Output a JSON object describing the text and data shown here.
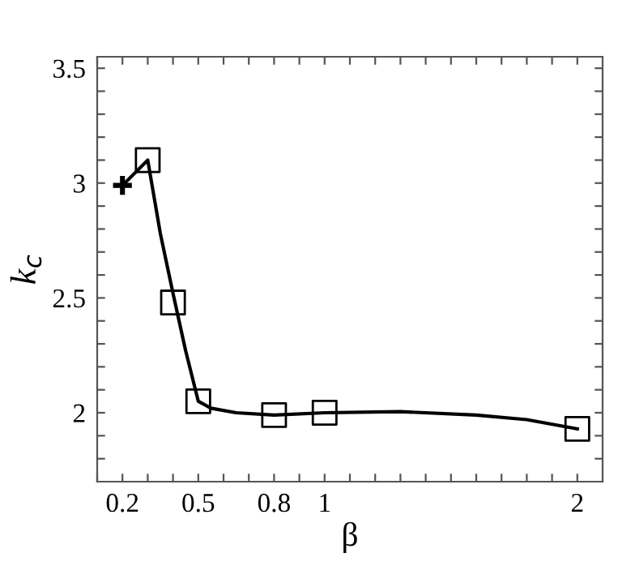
{
  "chart_data": {
    "type": "line",
    "xlabel": "β",
    "ylabel": "k$_{c}$",
    "xlim": [
      0.1,
      2.1
    ],
    "ylim": [
      1.7,
      3.55
    ],
    "xticks": [
      {
        "value": 0.1,
        "label": null
      },
      0.2,
      {
        "value": 0.3,
        "label": null
      },
      {
        "value": 0.4,
        "label": null
      },
      0.5,
      {
        "value": 0.6,
        "label": null
      },
      {
        "value": 0.7,
        "label": null
      },
      0.8,
      {
        "value": 0.9,
        "label": null
      },
      1,
      {
        "value": 1.1,
        "label": null
      },
      {
        "value": 1.2,
        "label": null
      },
      {
        "value": 1.3,
        "label": null
      },
      {
        "value": 1.4,
        "label": null
      },
      {
        "value": 1.5,
        "label": null
      },
      {
        "value": 1.6,
        "label": null
      },
      {
        "value": 1.7,
        "label": null
      },
      {
        "value": 1.8,
        "label": null
      },
      {
        "value": 1.9,
        "label": null
      },
      2
    ],
    "yticks": [
      {
        "value": 1.8,
        "label": null
      },
      {
        "value": 1.9,
        "label": null
      },
      2,
      {
        "value": 2.1,
        "label": null
      },
      {
        "value": 2.2,
        "label": null
      },
      {
        "value": 2.3,
        "label": null
      },
      {
        "value": 2.4,
        "label": null
      },
      2.5,
      {
        "value": 2.6,
        "label": null
      },
      {
        "value": 2.7,
        "label": null
      },
      {
        "value": 2.8,
        "label": null
      },
      {
        "value": 2.9,
        "label": null
      },
      3,
      {
        "value": 3.1,
        "label": null
      },
      {
        "value": 3.2,
        "label": null
      },
      {
        "value": 3.3,
        "label": null
      },
      {
        "value": 3.4,
        "label": null
      },
      3.5
    ],
    "grid": false,
    "legend": false,
    "series": [
      {
        "color": "#000000",
        "marker": "none",
        "line_style": "solid",
        "x": [
          0.2,
          0.3,
          0.35,
          0.4,
          0.45,
          0.5,
          0.55,
          0.65,
          0.8,
          1.0,
          1.3,
          1.6,
          1.8,
          2.0
        ],
        "values": [
          2.99,
          3.1,
          2.78,
          2.52,
          2.27,
          2.05,
          2.02,
          2.0,
          1.99,
          2.0,
          2.005,
          1.99,
          1.97,
          1.93
        ]
      },
      {
        "type": "scatter",
        "color": "#000000",
        "marker": "square",
        "x": [
          0.3,
          0.4,
          0.5,
          0.8,
          1.0,
          2.0
        ],
        "values": [
          3.1,
          2.48,
          2.05,
          1.99,
          2.0,
          1.93
        ]
      },
      {
        "type": "scatter",
        "color": "#000000",
        "marker": "cross",
        "x": [
          0.2
        ],
        "values": [
          2.99
        ]
      }
    ]
  }
}
